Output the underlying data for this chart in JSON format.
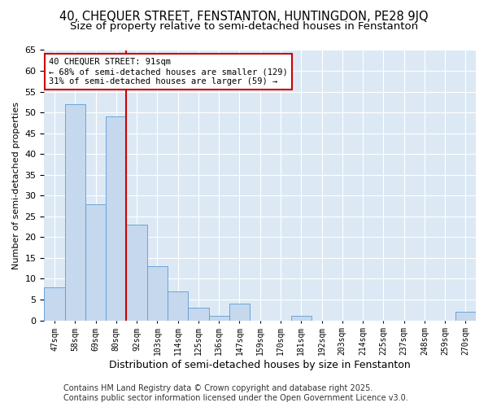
{
  "title1": "40, CHEQUER STREET, FENSTANTON, HUNTINGDON, PE28 9JQ",
  "title2": "Size of property relative to semi-detached houses in Fenstanton",
  "xlabel": "Distribution of semi-detached houses by size in Fenstanton",
  "ylabel": "Number of semi-detached properties",
  "categories": [
    "47sqm",
    "58sqm",
    "69sqm",
    "80sqm",
    "92sqm",
    "103sqm",
    "114sqm",
    "125sqm",
    "136sqm",
    "147sqm",
    "159sqm",
    "170sqm",
    "181sqm",
    "192sqm",
    "203sqm",
    "214sqm",
    "225sqm",
    "237sqm",
    "248sqm",
    "259sqm",
    "270sqm"
  ],
  "values": [
    8,
    52,
    28,
    49,
    23,
    13,
    7,
    3,
    1,
    4,
    0,
    0,
    1,
    0,
    0,
    0,
    0,
    0,
    0,
    0,
    2
  ],
  "bar_color": "#c5d8ed",
  "bar_edge_color": "#5b9bd5",
  "vline_x": 3.5,
  "vline_color": "#cc0000",
  "annotation_title": "40 CHEQUER STREET: 91sqm",
  "annotation_line1": "← 68% of semi-detached houses are smaller (129)",
  "annotation_line2": "31% of semi-detached houses are larger (59) →",
  "annotation_box_color": "#ffffff",
  "annotation_box_edge": "#cc0000",
  "ylim": [
    0,
    65
  ],
  "yticks": [
    0,
    5,
    10,
    15,
    20,
    25,
    30,
    35,
    40,
    45,
    50,
    55,
    60,
    65
  ],
  "footer1": "Contains HM Land Registry data © Crown copyright and database right 2025.",
  "footer2": "Contains public sector information licensed under the Open Government Licence v3.0.",
  "fig_bg_color": "#ffffff",
  "plot_bg_color": "#dce9f5",
  "grid_color": "#ffffff",
  "title1_fontsize": 10.5,
  "title2_fontsize": 9.5,
  "footer_fontsize": 7,
  "annotation_fontsize": 7.5,
  "ylabel_fontsize": 8,
  "xlabel_fontsize": 9
}
